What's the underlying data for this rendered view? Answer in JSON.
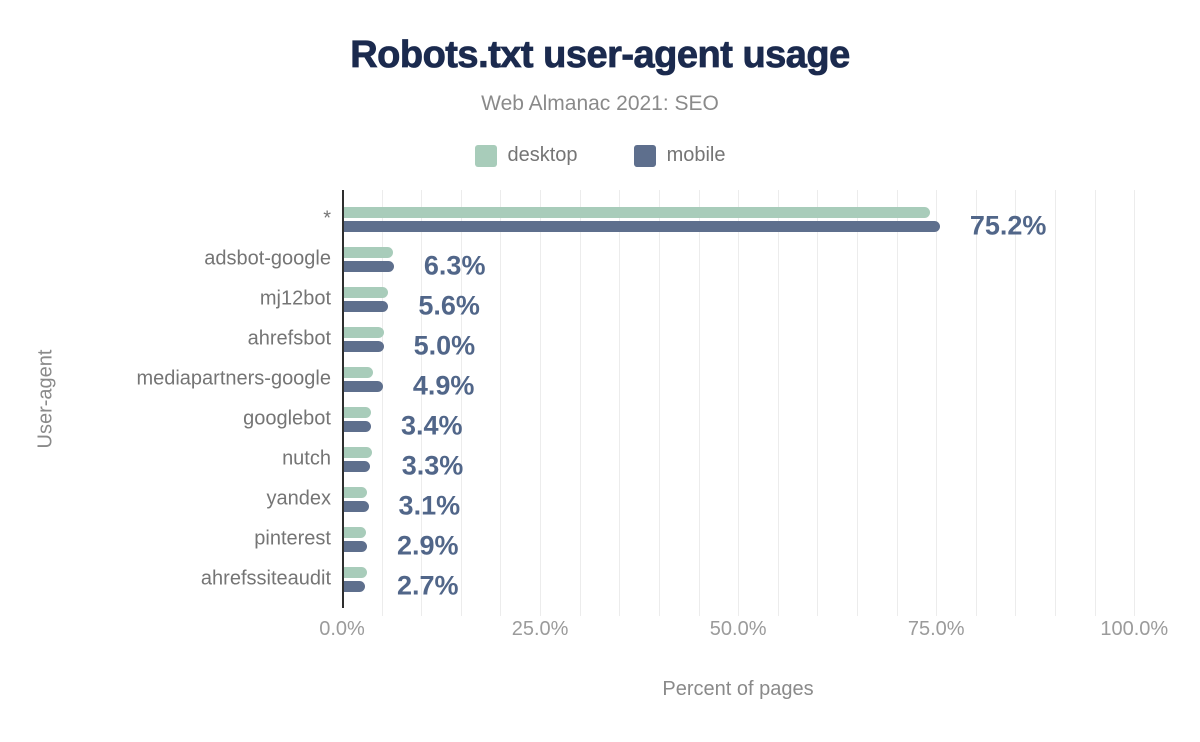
{
  "chart_data": {
    "type": "bar",
    "orientation": "horizontal",
    "title": "Robots.txt user-agent usage",
    "subtitle": "Web Almanac 2021: SEO",
    "xlabel": "Percent of pages",
    "ylabel": "User-agent",
    "legend_position": "top",
    "grid": {
      "minor_step_pct": 5,
      "color": "#ececec"
    },
    "xlim": [
      0,
      104
    ],
    "x_ticks": [
      {
        "label": "0.0%",
        "value": 0
      },
      {
        "label": "25.0%",
        "value": 25
      },
      {
        "label": "50.0%",
        "value": 50
      },
      {
        "label": "75.0%",
        "value": 75
      },
      {
        "label": "100.0%",
        "value": 100
      }
    ],
    "categories": [
      "*",
      "adsbot-google",
      "mj12bot",
      "ahrefsbot",
      "mediapartners-google",
      "googlebot",
      "nutch",
      "yandex",
      "pinterest",
      "ahrefssiteaudit"
    ],
    "series": [
      {
        "name": "desktop",
        "color": "#a8ccba",
        "values": [
          74.0,
          6.2,
          5.5,
          5.0,
          3.7,
          3.4,
          3.5,
          2.9,
          2.8,
          2.9
        ]
      },
      {
        "name": "mobile",
        "color": "#5e6f8d",
        "values": [
          75.2,
          6.3,
          5.6,
          5.0,
          4.9,
          3.4,
          3.3,
          3.1,
          2.9,
          2.7
        ]
      }
    ],
    "data_labels": [
      "75.2%",
      "6.3%",
      "5.6%",
      "5.0%",
      "4.9%",
      "3.4%",
      "3.3%",
      "3.1%",
      "2.9%",
      "2.7%"
    ],
    "colors": {
      "title": "#1b2a4e",
      "data_label": "#516689",
      "category_label": "#757575",
      "tick_label": "#9b9b9b",
      "axis_line": "#2e2e2e"
    }
  }
}
